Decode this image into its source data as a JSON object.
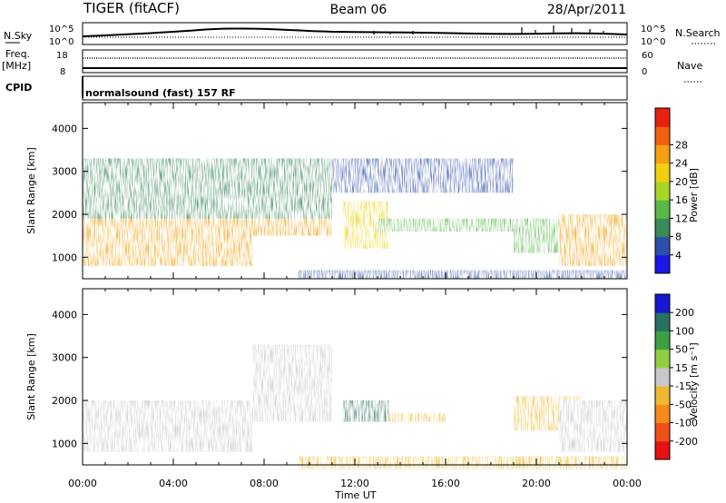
{
  "header": {
    "radar": "TIGER (fitACF)",
    "beam": "Beam 06",
    "date": "28/Apr/2011"
  },
  "top_strip": {
    "left_label": "N.Sky",
    "right_label": "N.Search",
    "left_ticks": [
      "10^5",
      "10^0"
    ],
    "right_ticks": [
      "10^5",
      "10^0"
    ]
  },
  "freq_strip": {
    "left_label_1": "Freq.",
    "left_label_2": "[MHz]",
    "right_label": "Nave",
    "left_ticks": [
      "18",
      "8"
    ],
    "right_ticks": [
      "60",
      "0"
    ]
  },
  "cpid": {
    "label": "CPID",
    "text": "normalsound (fast) 157 RF"
  },
  "chart_data": [
    {
      "type": "heatmap",
      "name": "power",
      "ylabel": "Slant Range [km]",
      "ytick_labels": [
        "1000",
        "2000",
        "3000",
        "4000"
      ],
      "ylim": [
        500,
        4600
      ],
      "colorbar": {
        "label": "Power [dB]",
        "tick_labels": [
          "4",
          "8",
          "12",
          "16",
          "20",
          "24",
          "28"
        ],
        "colors": [
          "#1818e8",
          "#2d4fa8",
          "#3a8a5a",
          "#58b848",
          "#a8d428",
          "#f0d010",
          "#f5a010",
          "#f06010",
          "#e82010"
        ]
      },
      "regions": [
        {
          "t": [
            0,
            7.5
          ],
          "r": [
            800,
            1900
          ],
          "v": 28
        },
        {
          "t": [
            7.5,
            11
          ],
          "r": [
            1500,
            3300
          ],
          "v": 26
        },
        {
          "t": [
            0,
            11
          ],
          "r": [
            1900,
            3300
          ],
          "v": 12
        },
        {
          "t": [
            11.5,
            13.5
          ],
          "r": [
            1200,
            2300
          ],
          "v": 24
        },
        {
          "t": [
            13,
            19
          ],
          "r": [
            1600,
            1900
          ],
          "v": 16
        },
        {
          "t": [
            11,
            19
          ],
          "r": [
            2500,
            3300
          ],
          "v": 6
        },
        {
          "t": [
            19,
            21
          ],
          "r": [
            1100,
            1900
          ],
          "v": 16
        },
        {
          "t": [
            21,
            24
          ],
          "r": [
            800,
            2000
          ],
          "v": 28
        },
        {
          "t": [
            9.5,
            24
          ],
          "r": [
            500,
            700
          ],
          "v": 6
        }
      ]
    },
    {
      "type": "heatmap",
      "name": "velocity",
      "ylabel": "Slant Range [km]",
      "xlabel": "Time UT",
      "xtick_labels": [
        "00:00",
        "04:00",
        "08:00",
        "12:00",
        "16:00",
        "20:00",
        "00:00"
      ],
      "xlim": [
        0,
        24
      ],
      "ytick_labels": [
        "1000",
        "2000",
        "3000",
        "4000"
      ],
      "ylim": [
        500,
        4600
      ],
      "colorbar": {
        "label": "Velocity [m s⁻¹]",
        "tick_labels": [
          "-200",
          "-100",
          "-50",
          "-15",
          "15",
          "50",
          "100",
          "200"
        ],
        "colors": [
          "#e81010",
          "#f05018",
          "#f58a18",
          "#f0b830",
          "#c8c8c8",
          "#90d040",
          "#3aa040",
          "#287060",
          "#1818d0"
        ]
      },
      "regions": [
        {
          "t": [
            0,
            7.5
          ],
          "r": [
            800,
            2000
          ],
          "v": 0
        },
        {
          "t": [
            7.5,
            11
          ],
          "r": [
            1500,
            3300
          ],
          "v": 0
        },
        {
          "t": [
            11.5,
            13.5
          ],
          "r": [
            1500,
            2000
          ],
          "v": 150
        },
        {
          "t": [
            13.5,
            16
          ],
          "r": [
            1500,
            1700
          ],
          "v": -30
        },
        {
          "t": [
            19,
            22
          ],
          "r": [
            1300,
            2100
          ],
          "v": -40
        },
        {
          "t": [
            21,
            24
          ],
          "r": [
            800,
            2000
          ],
          "v": 0
        },
        {
          "t": [
            9.5,
            24
          ],
          "r": [
            400,
            700
          ],
          "v": -30
        }
      ]
    }
  ]
}
